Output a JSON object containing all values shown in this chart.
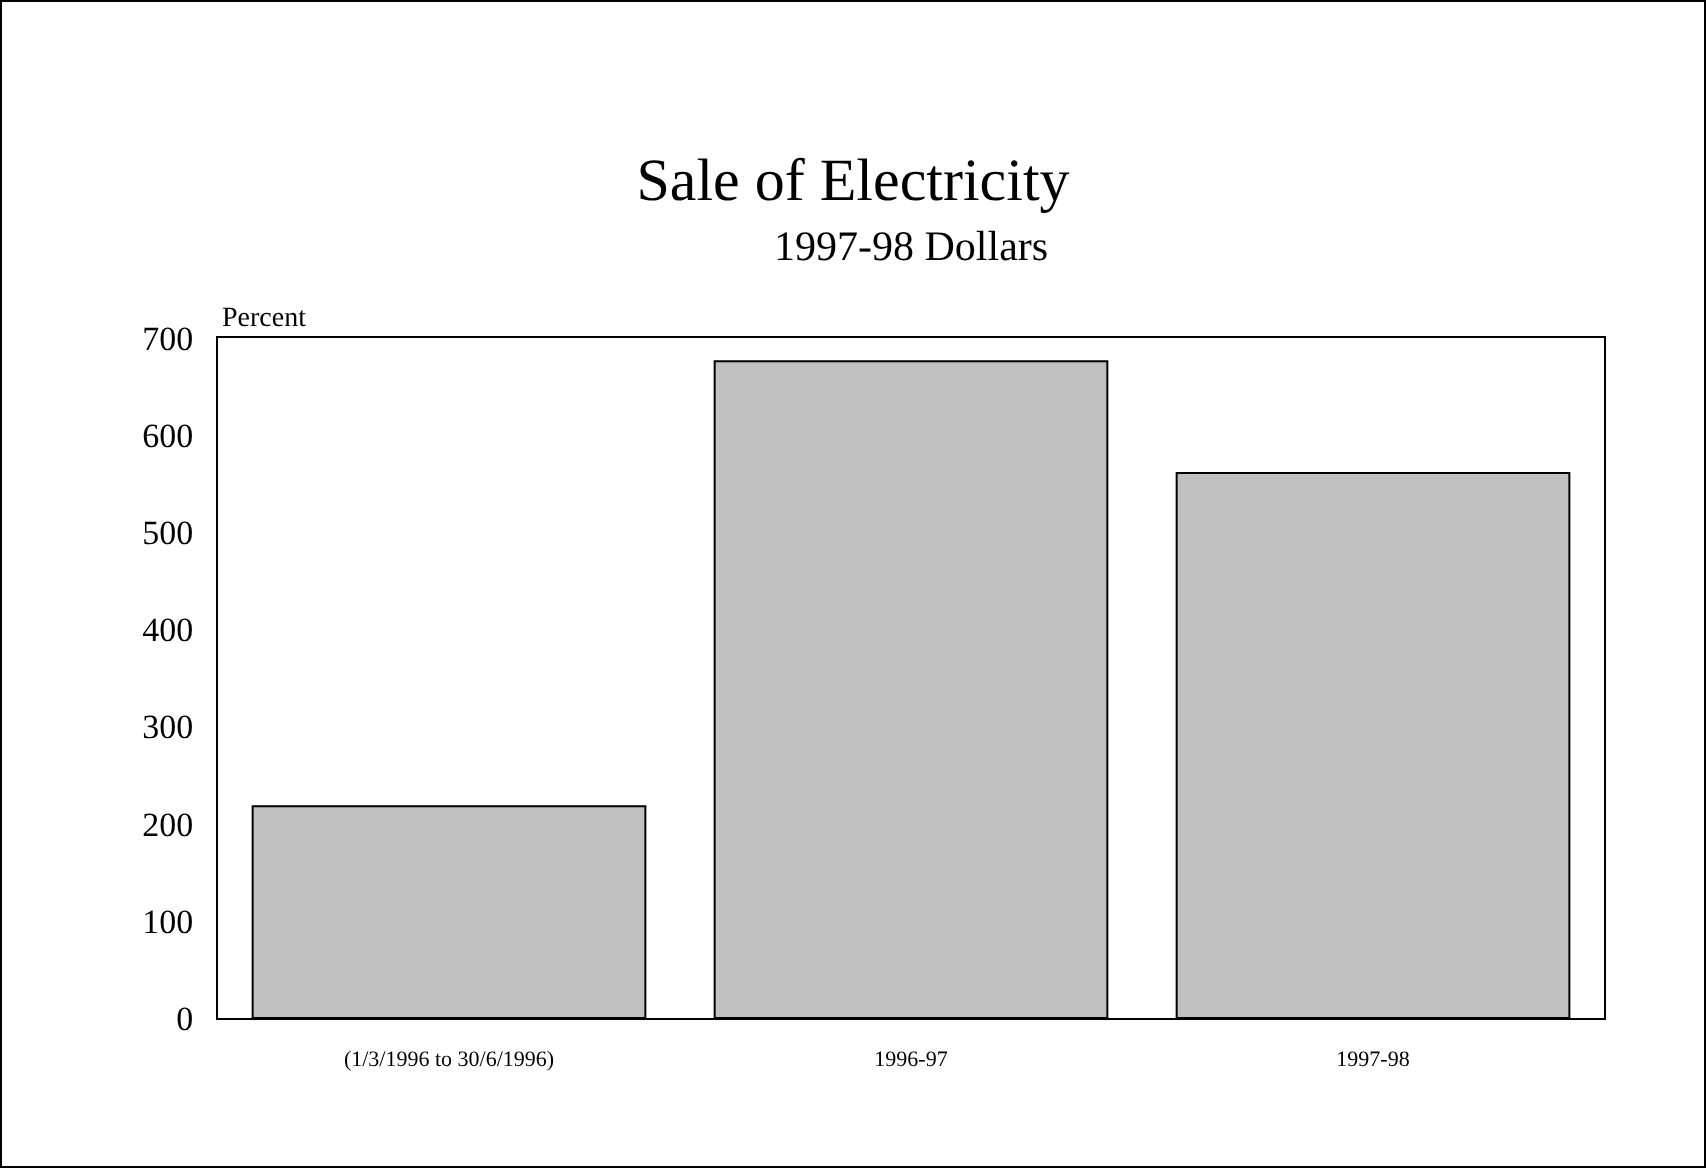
{
  "chart_data": {
    "type": "bar",
    "title": "Sale of Electricity",
    "subtitle": "1997-98 Dollars",
    "ylabel": "Percent",
    "categories": [
      "(1/3/1996 to 30/6/1996)",
      "1996-97",
      "1997-98"
    ],
    "values": [
      218,
      676,
      561
    ],
    "color": "#c0c0c0",
    "ylim": [
      0,
      700
    ],
    "yticks": [
      0,
      100,
      200,
      300,
      400,
      500,
      600,
      700
    ],
    "grid": false
  }
}
